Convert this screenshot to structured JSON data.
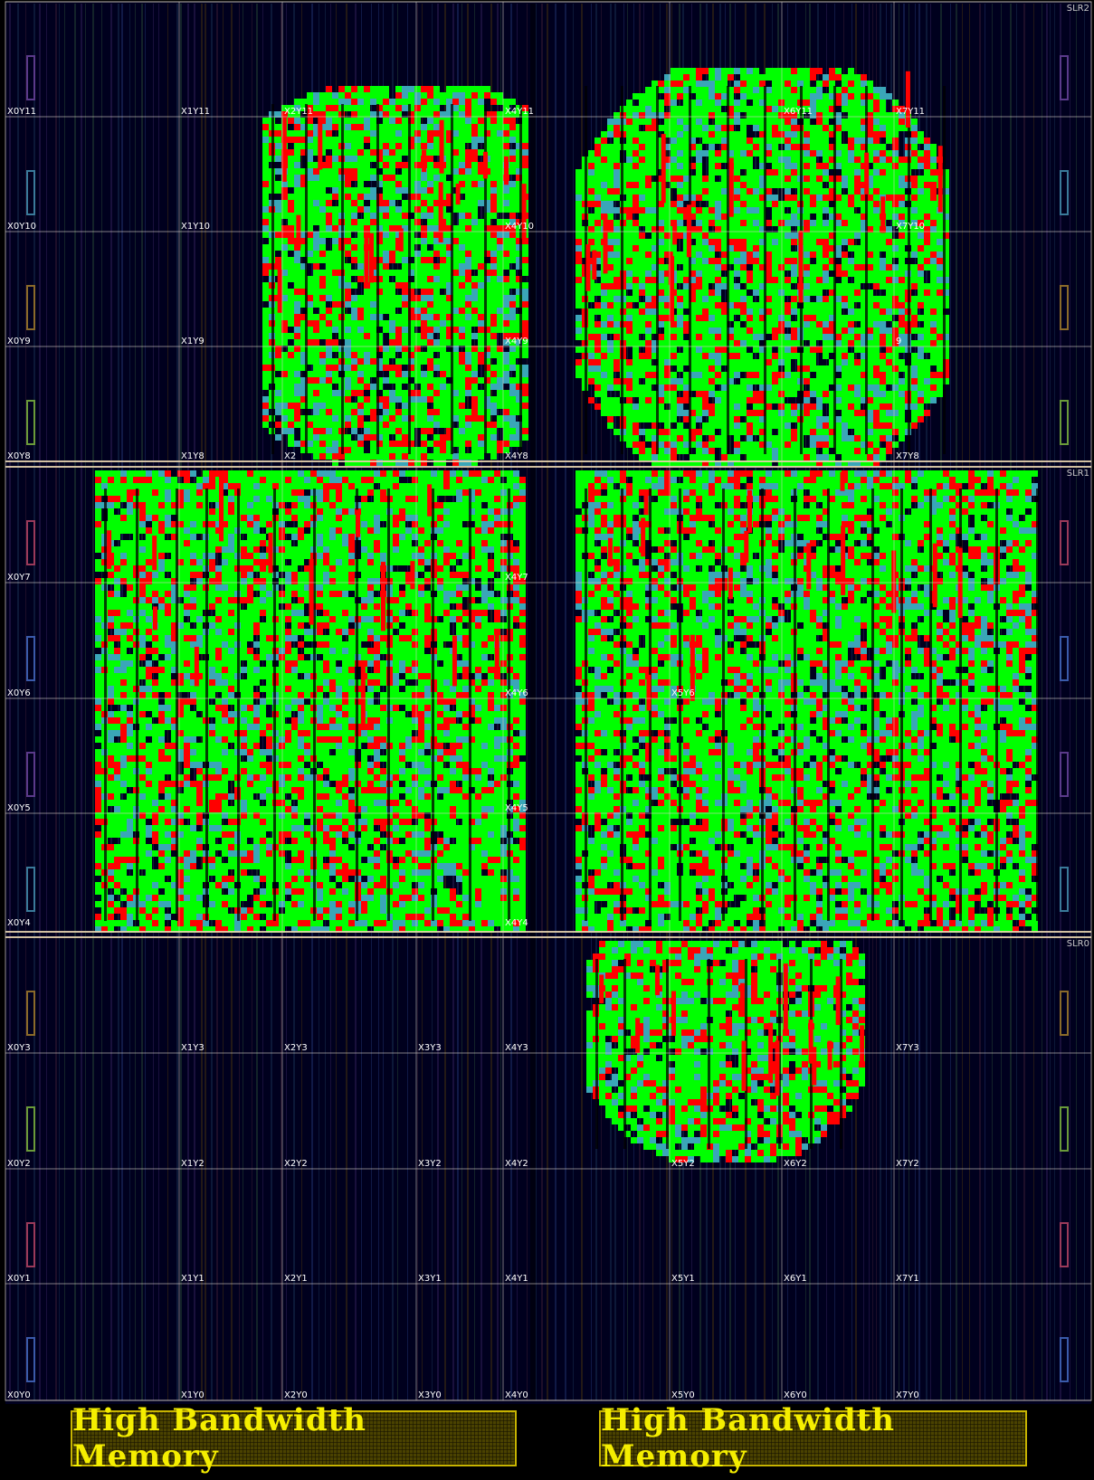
{
  "slr_labels": [
    "SLR2",
    "SLR1",
    "SLR0"
  ],
  "clock_regions": [
    [
      "X0Y11",
      "X1Y11",
      "X2Y11",
      "",
      "X4Y11",
      "",
      "X6Y11",
      "X7Y11"
    ],
    [
      "X0Y10",
      "X1Y10",
      "",
      "",
      "X4Y10",
      "",
      "",
      "X7Y10"
    ],
    [
      "X0Y9",
      "X1Y9",
      "",
      "",
      "X4Y9",
      "",
      "",
      "9"
    ],
    [
      "X0Y8",
      "X1Y8",
      "X2",
      "",
      "X4Y8",
      "",
      "",
      "X7Y8"
    ],
    [
      "X0Y7",
      "",
      "",
      "",
      "X4Y7",
      "",
      "",
      ""
    ],
    [
      "X0Y6",
      "",
      "",
      "",
      "X4Y6",
      "X5Y6",
      "",
      ""
    ],
    [
      "X0Y5",
      "",
      "",
      "",
      "X4Y5",
      "",
      "",
      ""
    ],
    [
      "X0Y4",
      "",
      "",
      "",
      "X4Y4",
      "",
      "",
      ""
    ],
    [
      "X0Y3",
      "X1Y3",
      "X2Y3",
      "X3Y3",
      "X4Y3",
      "",
      "",
      "X7Y3"
    ],
    [
      "X0Y2",
      "X1Y2",
      "X2Y2",
      "X3Y2",
      "X4Y2",
      "X5Y2",
      "X6Y2",
      "X7Y2"
    ],
    [
      "X0Y1",
      "X1Y1",
      "X2Y1",
      "X3Y1",
      "X4Y1",
      "X5Y1",
      "X6Y1",
      "X7Y1"
    ],
    [
      "X0Y0",
      "X1Y0",
      "X2Y0",
      "X3Y0",
      "X4Y0",
      "X5Y0",
      "X6Y0",
      "X7Y0"
    ]
  ],
  "colors": {
    "background": "#000022",
    "cell_green": "#00ff00",
    "cell_red": "#ff0000",
    "cell_cyan": "#3aa6b8",
    "region_line": "#d8d0c8",
    "slr_line": "#e8d4b0",
    "label_text": "#ffffff",
    "hbm_text": "#f5ee00"
  },
  "hbm": {
    "left_label": "High Bandwidth Memory",
    "right_label": "High Bandwidth Memory"
  }
}
